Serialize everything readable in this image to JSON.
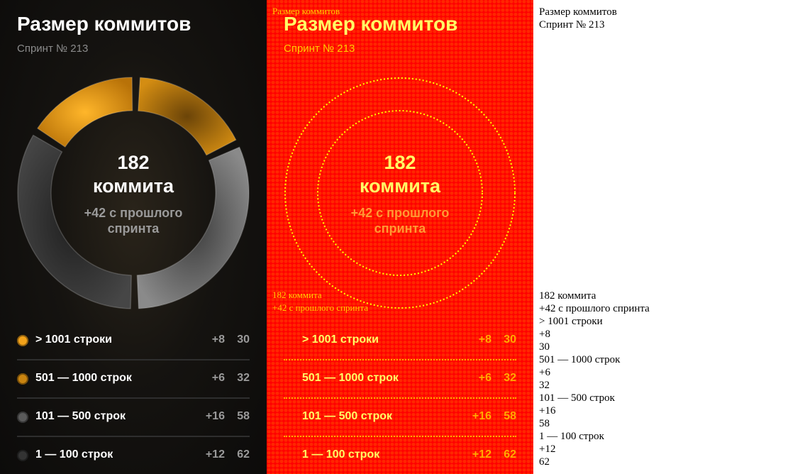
{
  "title": "Размер коммитов",
  "subtitle": "Спринт № 213",
  "center": {
    "value": "182",
    "unit": "коммита",
    "total_line": "182 коммита",
    "delta": "+42 с прошлого спринта"
  },
  "chart_data": {
    "type": "pie",
    "title": "Размер коммитов",
    "categories": [
      "> 1001 строки",
      "501 — 1000 строк",
      "101 — 500 строк",
      "1 — 100 строк"
    ],
    "values": [
      30,
      32,
      58,
      62
    ],
    "deltas": [
      "+8",
      "+6",
      "+16",
      "+12"
    ],
    "total": 182,
    "colors": [
      "#f2a21a",
      "#c98410",
      "#6d6d6d",
      "#3a3a3a"
    ]
  },
  "legend": [
    {
      "label": "> 1001 строки",
      "delta": "+8",
      "count": "30",
      "color": "#f2a21a"
    },
    {
      "label": "501 — 1000 строк",
      "delta": "+6",
      "count": "32",
      "color": "#c98410"
    },
    {
      "label": "101 — 500 строк",
      "delta": "+16",
      "count": "58",
      "color": "#5a5a5a"
    },
    {
      "label": "1 — 100 строк",
      "delta": "+12",
      "count": "62",
      "color": "#333333"
    }
  ]
}
